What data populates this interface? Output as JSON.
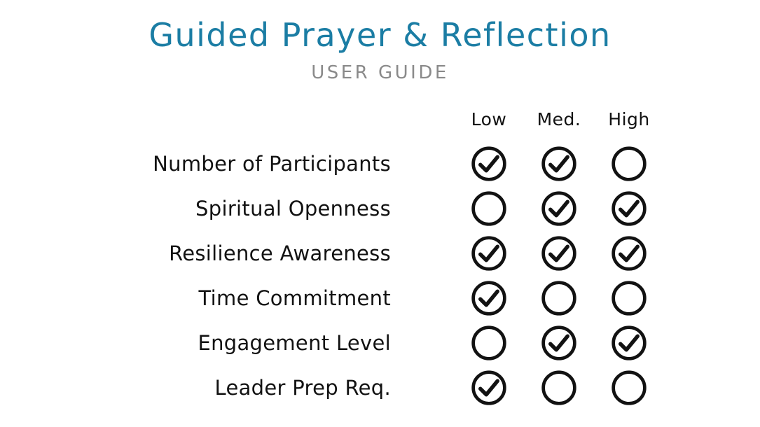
{
  "header": {
    "title": "Guided Prayer & Reflection",
    "subtitle": "USER GUIDE"
  },
  "colors": {
    "title": "#1b7da4",
    "subtitle": "#8a8a8a",
    "ink": "#121212"
  },
  "table": {
    "columns": [
      "Low",
      "Med.",
      "High"
    ],
    "rows": [
      {
        "label": "Number of Participants",
        "checks": [
          true,
          true,
          false
        ]
      },
      {
        "label": "Spiritual Openness",
        "checks": [
          false,
          true,
          true
        ]
      },
      {
        "label": "Resilience Awareness",
        "checks": [
          true,
          true,
          true
        ]
      },
      {
        "label": "Time Commitment",
        "checks": [
          true,
          false,
          false
        ]
      },
      {
        "label": "Engagement Level",
        "checks": [
          false,
          true,
          true
        ]
      },
      {
        "label": "Leader Prep Req.",
        "checks": [
          true,
          false,
          false
        ]
      }
    ]
  }
}
